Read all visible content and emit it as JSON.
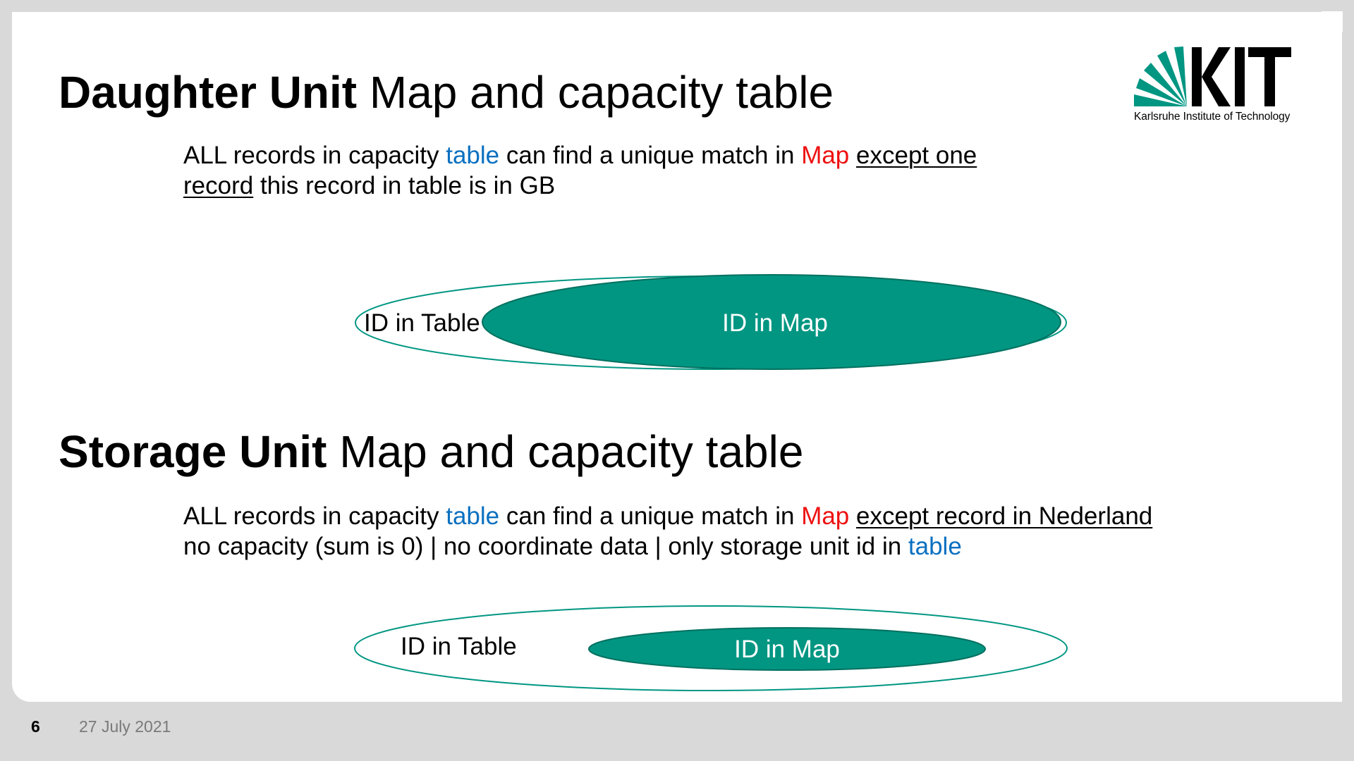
{
  "slide": {
    "title1_bold": "Daughter Unit",
    "title1_rest": " Map and capacity table",
    "para1": {
      "line1_a": "ALL records in capacity ",
      "line1_table": "table",
      "line1_b": " can find a unique match in ",
      "line1_map": "Map",
      "line1_c": " ",
      "line1_underlined": "except one",
      "line2_underlined": "record",
      "line2_rest": " this record in table is in GB"
    },
    "diagram1": {
      "outer_label": "ID in Table",
      "inner_label": "ID in Map"
    },
    "title2_bold": "Storage Unit",
    "title2_rest": " Map and capacity table",
    "para2": {
      "line1_a": "ALL records in capacity ",
      "line1_table": "table",
      "line1_b": " can find a unique match in ",
      "line1_map": "Map",
      "line1_c": " ",
      "line1_underlined": "except record in Nederland",
      "line2_a": "no capacity (sum is 0) | no coordinate data | only storage unit id in ",
      "line2_table": "table"
    },
    "diagram2": {
      "outer_label": "ID in Table",
      "inner_label": "ID in Map"
    }
  },
  "logo": {
    "wordmark": "KIT",
    "caption": "Karlsruhe Institute of Technology"
  },
  "footer": {
    "page_number": "6",
    "date": "27 July 2021"
  },
  "colors": {
    "accent_green": "#009682",
    "blue": "#0a70c0",
    "red": "#ee1111"
  }
}
